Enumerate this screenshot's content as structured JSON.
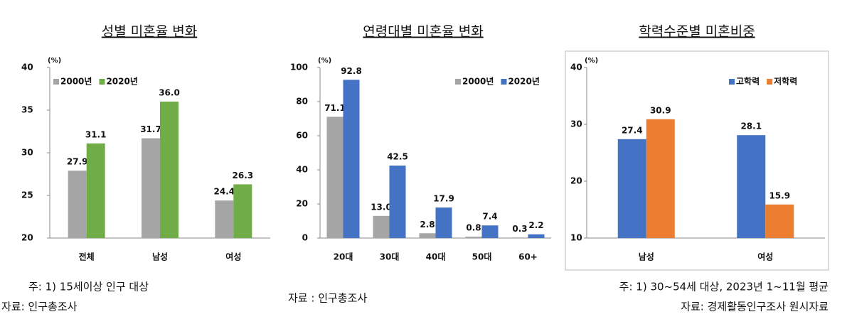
{
  "chart_data": [
    {
      "type": "bar",
      "title": "성별 미혼율 변화",
      "y_label": "(%)",
      "categories": [
        "전체",
        "남성",
        "여성"
      ],
      "series": [
        {
          "name": "2000년",
          "color": "#a5a5a5",
          "values": [
            27.9,
            31.7,
            24.4
          ],
          "value_labels": [
            "27.9",
            "31.7",
            "24.4"
          ]
        },
        {
          "name": "2020년",
          "color": "#70ad47",
          "values": [
            31.1,
            36.0,
            26.3
          ],
          "value_labels": [
            "31.1",
            "36.0",
            "26.3"
          ]
        }
      ],
      "ylim": [
        20,
        40
      ],
      "yticks": [
        20,
        25,
        30,
        35,
        40
      ],
      "grid": false,
      "legend": "upper left",
      "notes": [
        "주: 1) 15세이상 인구 대상",
        "자료: 인구총조사"
      ]
    },
    {
      "type": "bar",
      "title": "연령대별 미혼율 변화",
      "y_label": "(%)",
      "categories": [
        "20대",
        "30대",
        "40대",
        "50대",
        "60+"
      ],
      "series": [
        {
          "name": "2000년",
          "color": "#a5a5a5",
          "values": [
            71.1,
            13.0,
            2.8,
            0.8,
            0.3
          ],
          "value_labels": [
            "71.1",
            "13.0",
            "2.8",
            "0.8",
            "0.3"
          ]
        },
        {
          "name": "2020년",
          "color": "#4472c4",
          "values": [
            92.8,
            42.5,
            17.9,
            7.4,
            2.2
          ],
          "value_labels": [
            "92.8",
            "42.5",
            "17.9",
            "7.4",
            "2.2"
          ]
        }
      ],
      "ylim": [
        0,
        100
      ],
      "yticks": [
        0,
        20,
        40,
        60,
        80,
        100
      ],
      "grid": false,
      "legend": "upper right",
      "notes": [
        "자료 : 인구총조사"
      ]
    },
    {
      "type": "bar",
      "title": "학력수준별 미혼비중",
      "y_label": "(%)",
      "categories": [
        "남성",
        "여성"
      ],
      "series": [
        {
          "name": "고학력",
          "color": "#4472c4",
          "values": [
            27.4,
            28.1
          ],
          "value_labels": [
            "27.4",
            "28.1"
          ]
        },
        {
          "name": "저학력",
          "color": "#ed7d31",
          "values": [
            30.9,
            15.9
          ],
          "value_labels": [
            "30.9",
            "15.9"
          ]
        }
      ],
      "ylim": [
        10,
        40
      ],
      "yticks": [
        10,
        20,
        30,
        40
      ],
      "grid": false,
      "legend": "upper right",
      "notes": [
        "주: 1) 30~54세 대상, 2023년 1~11월 평균",
        "자료: 경제활동인구조사 원시자료"
      ]
    }
  ]
}
